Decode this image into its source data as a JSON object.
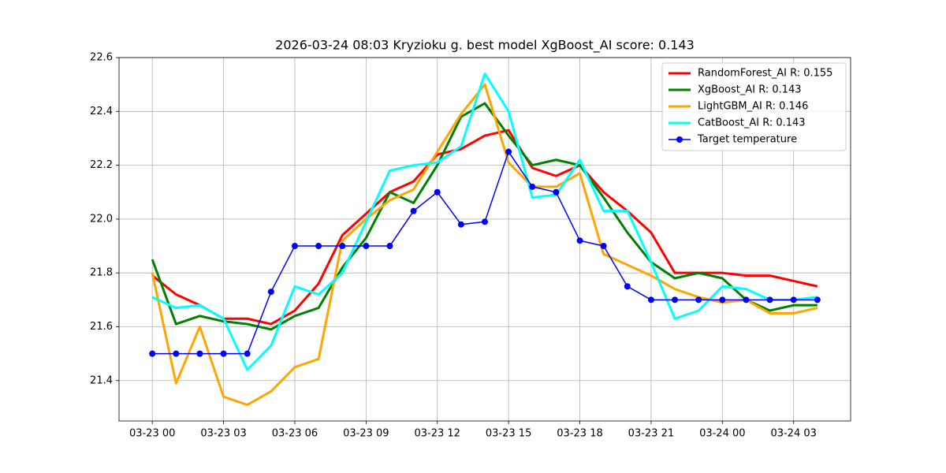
{
  "chart_data": {
    "type": "line",
    "title": "2026-03-24 08:03 Kryzioku g. best model XgBoost_AI score: 0.143",
    "x": [
      "03-23 00",
      "03-23 01",
      "03-23 02",
      "03-23 03",
      "03-23 04",
      "03-23 05",
      "03-23 06",
      "03-23 07",
      "03-23 08",
      "03-23 09",
      "03-23 10",
      "03-23 11",
      "03-23 12",
      "03-23 13",
      "03-23 14",
      "03-23 15",
      "03-23 16",
      "03-23 17",
      "03-23 18",
      "03-23 19",
      "03-23 20",
      "03-23 21",
      "03-23 22",
      "03-23 23",
      "03-24 00",
      "03-24 01",
      "03-24 02",
      "03-24 03",
      "03-24 04"
    ],
    "xticks": [
      "03-23 00",
      "03-23 03",
      "03-23 06",
      "03-23 09",
      "03-23 12",
      "03-23 15",
      "03-23 18",
      "03-23 21",
      "03-24 00",
      "03-24 03"
    ],
    "ylim": [
      21.25,
      22.6
    ],
    "yticks": [
      {
        "value": 21.4,
        "label": "21.4"
      },
      {
        "value": 21.6,
        "label": "21.6"
      },
      {
        "value": 21.8,
        "label": "21.8"
      },
      {
        "value": 22.0,
        "label": "22.0"
      },
      {
        "value": 22.2,
        "label": "22.2"
      },
      {
        "value": 22.4,
        "label": "22.4"
      },
      {
        "value": 22.6,
        "label": "22.6"
      }
    ],
    "grid": true,
    "legend": "upper right",
    "series": [
      {
        "name": "RandomForest_AI R: 0.155",
        "color": "#ff0000",
        "values": [
          21.79,
          21.72,
          21.68,
          21.63,
          21.63,
          21.61,
          21.66,
          21.76,
          21.94,
          22.02,
          22.1,
          22.14,
          22.24,
          22.26,
          22.31,
          22.33,
          22.19,
          22.16,
          22.2,
          22.1,
          22.03,
          21.95,
          21.8,
          21.8,
          21.8,
          21.79,
          21.79,
          21.77,
          21.75
        ]
      },
      {
        "name": "XgBoost_AI R: 0.143",
        "color": "#008000",
        "values": [
          21.85,
          21.61,
          21.64,
          21.62,
          21.61,
          21.59,
          21.64,
          21.67,
          21.82,
          21.93,
          22.1,
          22.06,
          22.2,
          22.38,
          22.43,
          22.31,
          22.2,
          22.22,
          22.2,
          22.08,
          21.95,
          21.84,
          21.78,
          21.8,
          21.78,
          21.7,
          21.66,
          21.68,
          21.68
        ]
      },
      {
        "name": "LightGBM_AI R: 0.146",
        "color": "#ffa500",
        "values": [
          21.8,
          21.39,
          21.6,
          21.34,
          21.31,
          21.36,
          21.45,
          21.48,
          21.92,
          22.0,
          22.07,
          22.11,
          22.25,
          22.39,
          22.5,
          22.21,
          22.12,
          22.12,
          22.17,
          21.87,
          21.83,
          21.79,
          21.74,
          21.71,
          21.69,
          21.7,
          21.65,
          21.65,
          21.67
        ]
      },
      {
        "name": "CatBoost_AI R: 0.143",
        "color": "#00ffff",
        "values": [
          21.71,
          21.67,
          21.68,
          21.63,
          21.44,
          21.53,
          21.75,
          21.72,
          21.8,
          21.99,
          22.18,
          22.2,
          22.21,
          22.27,
          22.54,
          22.4,
          22.08,
          22.09,
          22.22,
          22.03,
          22.03,
          21.84,
          21.63,
          21.66,
          21.75,
          21.74,
          21.7,
          21.7,
          21.71
        ]
      },
      {
        "name": "Target temperature",
        "color": "#0000ff",
        "marker": "o",
        "values": [
          21.5,
          21.5,
          21.5,
          21.5,
          21.5,
          21.73,
          21.9,
          21.9,
          21.9,
          21.9,
          21.9,
          22.03,
          22.1,
          21.98,
          21.99,
          22.25,
          22.12,
          22.1,
          21.92,
          21.9,
          21.75,
          21.7,
          21.7,
          21.7,
          21.7,
          21.7,
          21.7,
          21.7,
          21.7
        ]
      }
    ]
  }
}
